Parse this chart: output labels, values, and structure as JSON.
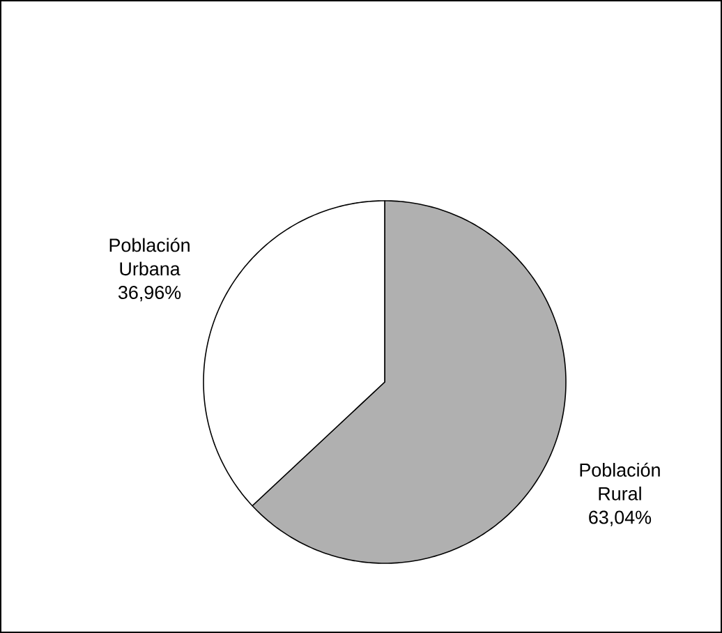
{
  "chart_data": {
    "type": "pie",
    "categories": [
      "Población Rural",
      "Población Urbana"
    ],
    "values": [
      63.04,
      36.96
    ],
    "value_labels": [
      "63,04%",
      "36,96%"
    ],
    "colors": [
      "#b0b0b0",
      "#ffffff"
    ]
  }
}
